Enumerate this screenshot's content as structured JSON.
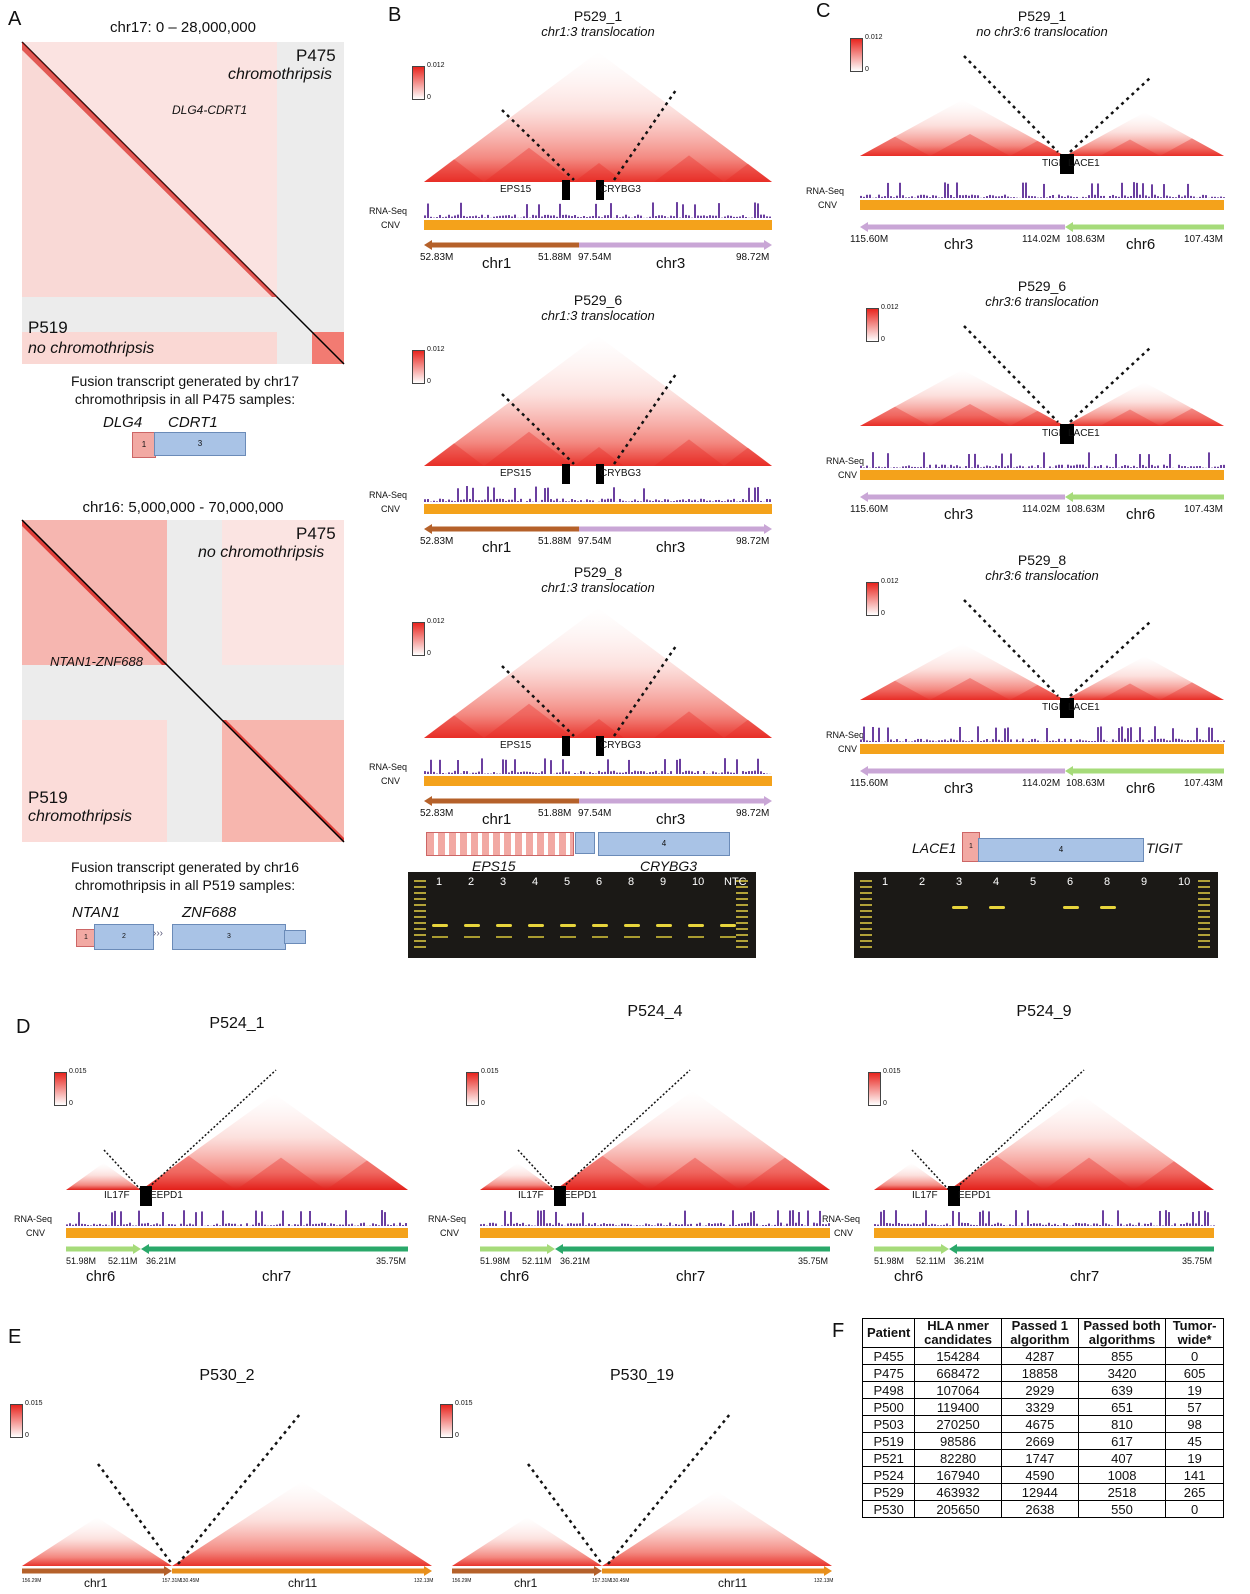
{
  "panels": {
    "A": {
      "letter": "A",
      "map1": {
        "title": "chr17: 0 – 28,000,000",
        "tr_label": "P475",
        "tr_sub": "chromothripsis",
        "star_label": "DLG4-CDRT1",
        "bl_label": "P519",
        "bl_sub": "no chromothripsis"
      },
      "fusion1": {
        "caption1": "Fusion transcript generated by chr17",
        "caption2": "chromothripsis in all P475 samples:",
        "geneL": "DLG4",
        "geneR": "CDRT1",
        "exonL": "1",
        "exonR": "3"
      },
      "map2": {
        "title": "chr16: 5,000,000 - 70,000,000",
        "tr_label": "P475",
        "tr_sub": "no chromothripsis",
        "star_label": "NTAN1-ZNF688",
        "bl_label": "P519",
        "bl_sub": "chromothripsis"
      },
      "fusion2": {
        "caption1": "Fusion transcript generated by chr16",
        "caption2": "chromothripsis in all P519 samples:",
        "geneL": "NTAN1",
        "geneR": "ZNF688",
        "exon1": "1",
        "exon2": "2",
        "exon3": "3"
      }
    },
    "B": {
      "letter": "B",
      "maps": [
        {
          "title": "P529_1",
          "sub": "chr1:3 translocation"
        },
        {
          "title": "P529_6",
          "sub": "chr1:3 translocation"
        },
        {
          "title": "P529_8",
          "sub": "chr1:3 translocation"
        }
      ],
      "scale_max": "0.012",
      "scale_min": "0",
      "geneL": "EPS15",
      "geneR": "CRYBG3",
      "rna": "RNA-Seq",
      "cnv": "CNV",
      "ticks": [
        "52.83M",
        "51.88M",
        "97.54M",
        "98.72M"
      ],
      "chrL": "chr1",
      "chrR": "chr3",
      "fusion_geneL": "EPS15",
      "fusion_geneR": "CRYBG3",
      "fusion_exon": "4",
      "gel_lanes": [
        "1",
        "2",
        "3",
        "4",
        "5",
        "6",
        "8",
        "9",
        "10",
        "NTC"
      ]
    },
    "C": {
      "letter": "C",
      "maps": [
        {
          "title": "P529_1",
          "sub": "no chr3:6 translocation"
        },
        {
          "title": "P529_6",
          "sub": "chr3:6 translocation"
        },
        {
          "title": "P529_8",
          "sub": "chr3:6 translocation"
        }
      ],
      "scale_max": "0.012",
      "scale_min": "0",
      "geneL": "TIGIT",
      "geneR": "LACE1",
      "rna": "RNA-Seq",
      "cnv": "CNV",
      "ticks": [
        "115.60M",
        "114.02M",
        "108.63M",
        "107.43M"
      ],
      "chrL": "chr3",
      "chrR": "chr6",
      "fusion_geneL": "LACE1",
      "fusion_geneR": "TIGIT",
      "fusion_exon1": "1",
      "fusion_exon": "4",
      "gel_lanes": [
        "1",
        "2",
        "3",
        "4",
        "5",
        "6",
        "8",
        "9",
        "10"
      ]
    },
    "D": {
      "letter": "D",
      "maps": [
        {
          "title": "P524_1"
        },
        {
          "title": "P524_4"
        },
        {
          "title": "P524_9"
        }
      ],
      "scale_max": "0.015",
      "scale_min": "0",
      "geneL": "IL17F",
      "geneR": "EEPD1",
      "rna": "RNA-Seq",
      "cnv": "CNV",
      "ticks": [
        "51.98M",
        "52.11M",
        "36.21M",
        "35.75M"
      ],
      "chrL": "chr6",
      "chrR": "chr7"
    },
    "E": {
      "letter": "E",
      "maps": [
        {
          "title": "P530_2"
        },
        {
          "title": "P530_19"
        }
      ],
      "scale_max": "0.015",
      "scale_min": "0",
      "ticks": [
        "156.29M",
        "157.31M",
        "130.45M",
        "132.13M"
      ],
      "chrL": "chr1",
      "chrR": "chr11"
    },
    "F": {
      "letter": "F",
      "headers": [
        "Patient",
        "HLA nmer candidates",
        "Passed 1 algorithm",
        "Passed both algorithms",
        "Tumor-wide*"
      ],
      "rows": [
        [
          "P455",
          "154284",
          "4287",
          "855",
          "0"
        ],
        [
          "P475",
          "668472",
          "18858",
          "3420",
          "605"
        ],
        [
          "P498",
          "107064",
          "2929",
          "639",
          "19"
        ],
        [
          "P500",
          "119400",
          "3329",
          "651",
          "57"
        ],
        [
          "P503",
          "270250",
          "4675",
          "810",
          "98"
        ],
        [
          "P519",
          "98586",
          "2669",
          "617",
          "45"
        ],
        [
          "P521",
          "82280",
          "1747",
          "407",
          "19"
        ],
        [
          "P524",
          "167940",
          "4590",
          "1008",
          "141"
        ],
        [
          "P529",
          "463932",
          "12944",
          "2518",
          "265"
        ],
        [
          "P530",
          "205650",
          "2638",
          "550",
          "0"
        ]
      ]
    }
  },
  "colors": {
    "hic": "#e8251f",
    "cnv": "#f4a21b",
    "rna": "#6b3fa0",
    "chr1": "#b5612a",
    "chr3": "#c9a6d6",
    "chr6": "#a6db7a",
    "chr7": "#2aa86a",
    "chr11": "#e8901c",
    "exon_red": "#f2a9a3",
    "exon_blue": "#a9c3e6"
  }
}
